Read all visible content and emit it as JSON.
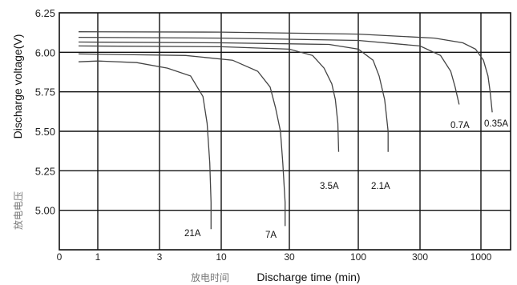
{
  "chart_data": {
    "type": "line",
    "xlabel": "Discharge time (min)",
    "xlabel_cn": "放电时间",
    "ylabel": "Discharge voltage(V)",
    "ylabel_cn": "放电电压",
    "xscale": "log",
    "ylim": [
      4.75,
      6.25
    ],
    "xticks": [
      0,
      1,
      3,
      10,
      30,
      100,
      300,
      1000
    ],
    "x_tick_labels": [
      "0",
      "1",
      "3",
      "10",
      "30",
      "100",
      "300",
      "1000"
    ],
    "yticks": [
      5.0,
      5.25,
      5.5,
      5.75,
      6.0,
      6.25
    ],
    "y_tick_labels": [
      "5.00",
      "5.25",
      "5.50",
      "5.75",
      "6.00",
      "6.25"
    ],
    "grid": true,
    "series": [
      {
        "name": "0.35A",
        "points": [
          [
            0.5,
            6.13
          ],
          [
            10,
            6.128
          ],
          [
            100,
            6.115
          ],
          [
            400,
            6.09
          ],
          [
            700,
            6.06
          ],
          [
            900,
            6.02
          ],
          [
            1050,
            5.95
          ],
          [
            1150,
            5.85
          ],
          [
            1200,
            5.75
          ],
          [
            1250,
            5.62
          ]
        ]
      },
      {
        "name": "0.7A",
        "points": [
          [
            0.5,
            6.095
          ],
          [
            10,
            6.09
          ],
          [
            100,
            6.075
          ],
          [
            300,
            6.04
          ],
          [
            450,
            5.98
          ],
          [
            550,
            5.88
          ],
          [
            600,
            5.78
          ],
          [
            650,
            5.67
          ]
        ]
      },
      {
        "name": "2.1A",
        "points": [
          [
            0.5,
            6.065
          ],
          [
            10,
            6.06
          ],
          [
            60,
            6.05
          ],
          [
            100,
            6.02
          ],
          [
            130,
            5.95
          ],
          [
            145,
            5.85
          ],
          [
            160,
            5.7
          ],
          [
            165,
            5.6
          ],
          [
            170,
            5.5
          ],
          [
            170,
            5.37
          ]
        ]
      },
      {
        "name": "3.5A",
        "points": [
          [
            0.5,
            6.04
          ],
          [
            10,
            6.035
          ],
          [
            30,
            6.02
          ],
          [
            45,
            5.98
          ],
          [
            55,
            5.9
          ],
          [
            63,
            5.8
          ],
          [
            67,
            5.7
          ],
          [
            70,
            5.55
          ],
          [
            71,
            5.37
          ]
        ]
      },
      {
        "name": "7A",
        "points": [
          [
            0.5,
            5.99
          ],
          [
            5,
            5.98
          ],
          [
            12,
            5.95
          ],
          [
            18,
            5.88
          ],
          [
            22,
            5.78
          ],
          [
            24,
            5.65
          ],
          [
            26,
            5.5
          ],
          [
            27,
            5.3
          ],
          [
            28,
            5.05
          ],
          [
            28,
            4.9
          ]
        ]
      },
      {
        "name": "21A",
        "points": [
          [
            0.5,
            5.94
          ],
          [
            1,
            5.945
          ],
          [
            2,
            5.935
          ],
          [
            3.5,
            5.9
          ],
          [
            5.5,
            5.85
          ],
          [
            7,
            5.72
          ],
          [
            7.6,
            5.55
          ],
          [
            8,
            5.3
          ],
          [
            8.2,
            5.05
          ],
          [
            8.2,
            4.88
          ]
        ]
      }
    ],
    "series_labels": [
      "0.35A",
      "0.7A",
      "2.1A",
      "3.5A",
      "7A",
      "21A"
    ]
  }
}
